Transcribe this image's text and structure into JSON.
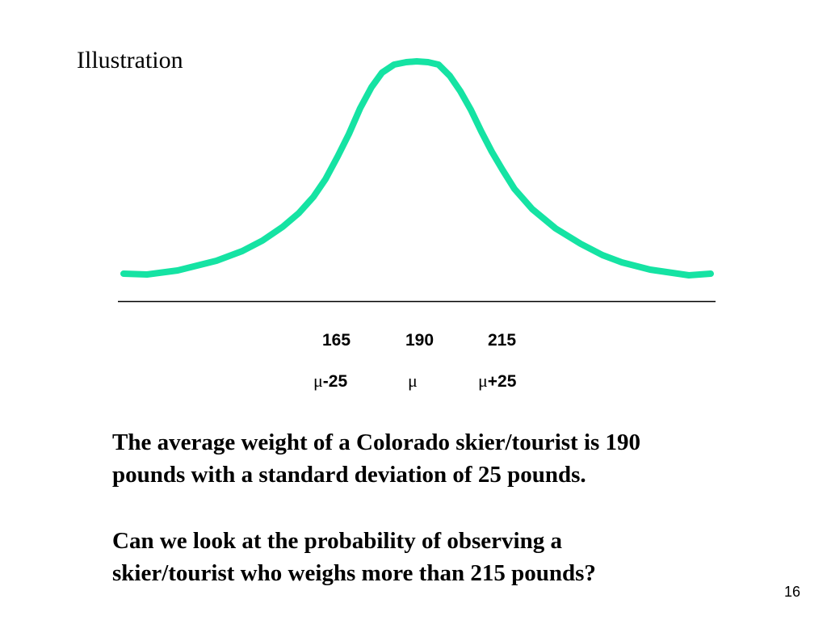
{
  "slide": {
    "title": "Illustration",
    "page_number": "16"
  },
  "figure": {
    "curve_color": "#15e3a3",
    "axis_color": "#000000",
    "x_values": [
      {
        "value": "165",
        "symbol_prefix": "μ",
        "symbol_suffix": "-25"
      },
      {
        "value": "190",
        "symbol_prefix": "μ",
        "symbol_suffix": ""
      },
      {
        "value": "215",
        "symbol_prefix": "μ",
        "symbol_suffix": "+25"
      }
    ]
  },
  "body": {
    "paragraph_1_line_1": "The average weight of a Colorado skier/tourist is 190",
    "paragraph_1_line_2": "pounds with a standard deviation of 25 pounds.",
    "paragraph_2_line_1": "Can we look at the probability of observing a",
    "paragraph_2_line_2": "skier/tourist who weighs more than 215 pounds?"
  }
}
